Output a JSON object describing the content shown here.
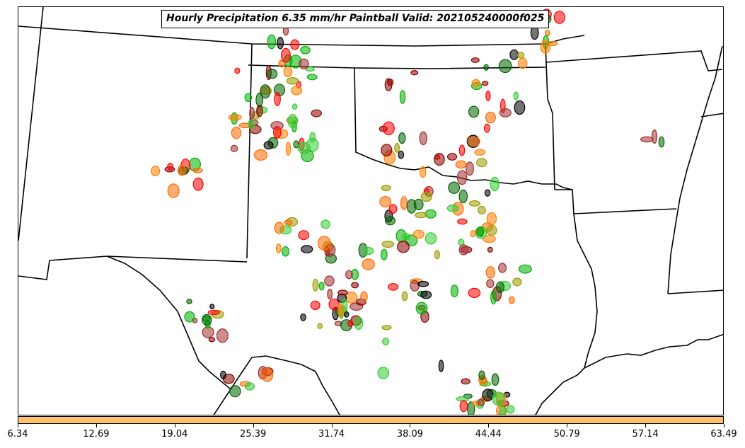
{
  "title": "Hourly Precipitation 6.35 mm/hr Paintball Valid: 202105240000f025",
  "colorbar": {
    "color": "#ffc266",
    "ticks": [
      "6.34",
      "12.69",
      "19.04",
      "25.39",
      "31.74",
      "38.09",
      "44.44",
      "50.79",
      "57.14",
      "63.49"
    ]
  },
  "member_colors": [
    "#ff0000",
    "#ff8000",
    "#8b0000",
    "#9a9a00",
    "#00b000",
    "#006400",
    "#000000",
    "#a03030",
    "#ff6a00",
    "#33cc33"
  ]
}
